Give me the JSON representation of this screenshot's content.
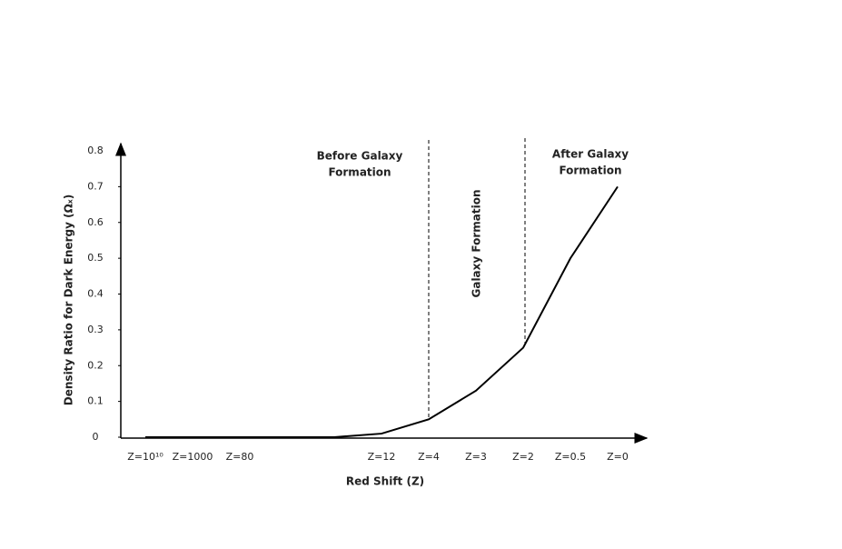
{
  "chart_data": {
    "type": "line",
    "y_label": "Density Ratio for Dark Energy (Ωₓ)",
    "x_label": "Red Shift (Z)",
    "categories": [
      "Z=10¹⁰",
      "Z=1000",
      "Z=80",
      null,
      null,
      "Z=12",
      "Z=4",
      "Z=3",
      "Z=2",
      "Z=0.5",
      "Z=0"
    ],
    "series": [
      {
        "color": "#000000",
        "values": [
          0,
          0,
          0,
          0,
          0,
          0.01,
          0.05,
          0.13,
          0.25,
          0.5,
          0.7
        ]
      }
    ],
    "ylim": [
      0,
      0.8
    ],
    "yticks": [
      0,
      0.1,
      0.2,
      0.3,
      0.4,
      0.5,
      0.6,
      0.7,
      0.8
    ],
    "grid": false,
    "annotations": [
      [
        "Before Galaxy",
        "Formation"
      ],
      [
        "Galaxy Formation"
      ],
      [
        "After Galaxy",
        "Formation"
      ]
    ]
  }
}
